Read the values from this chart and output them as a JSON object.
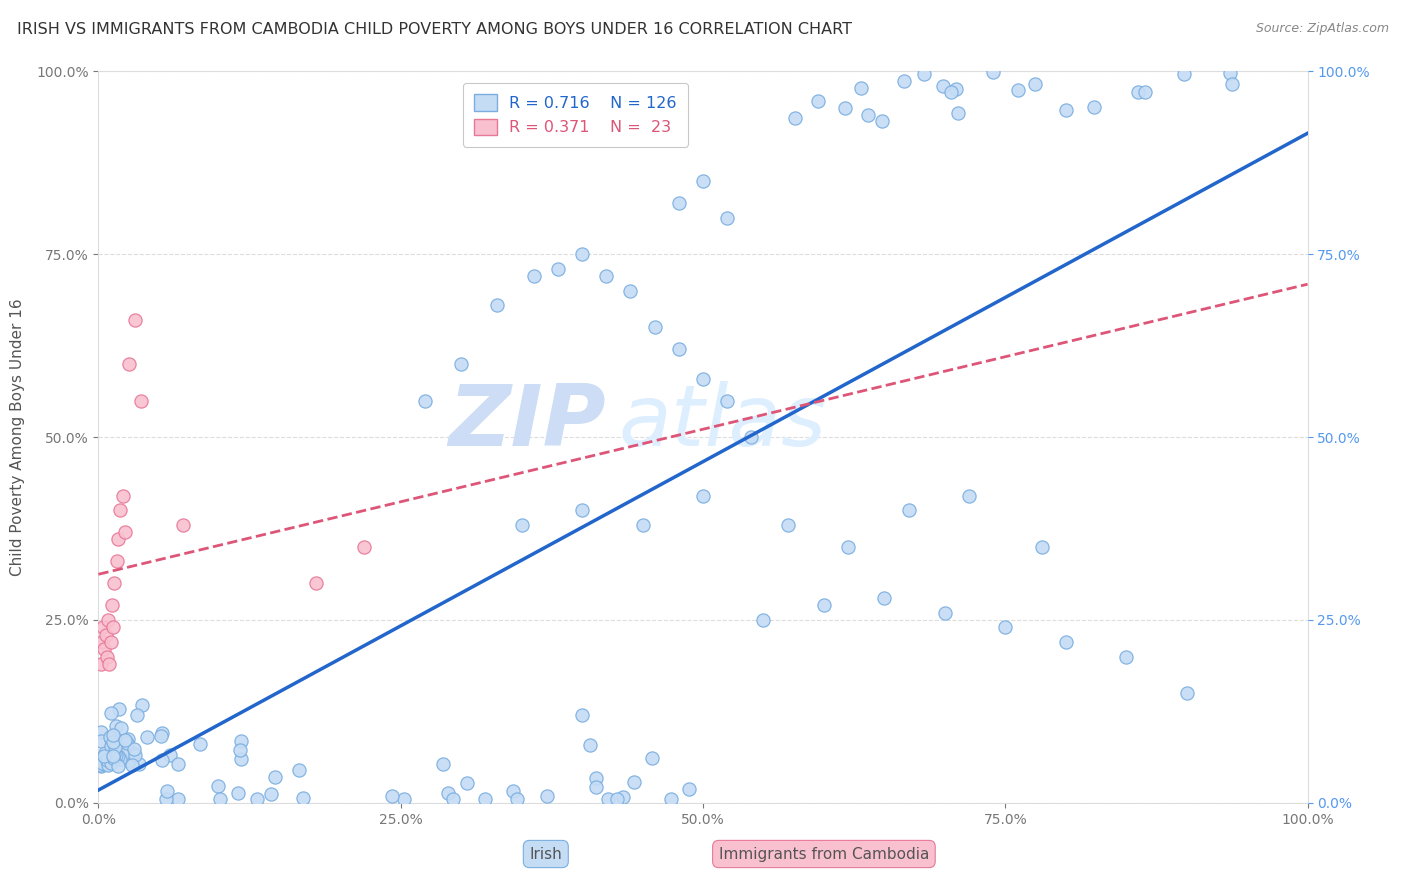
{
  "title": "IRISH VS IMMIGRANTS FROM CAMBODIA CHILD POVERTY AMONG BOYS UNDER 16 CORRELATION CHART",
  "source": "Source: ZipAtlas.com",
  "ylabel": "Child Poverty Among Boys Under 16",
  "watermark_line1": "ZIP",
  "watermark_line2": "atlas",
  "legend_irish_r": "0.716",
  "legend_irish_n": "126",
  "legend_camb_r": "0.371",
  "legend_camb_n": " 23",
  "irish_color": "#c5dcf5",
  "irish_edge": "#7aaee0",
  "camb_color": "#f9c0cf",
  "camb_edge": "#e87898",
  "irish_line_color": "#2266cc",
  "camb_line_color": "#dd5577",
  "grid_color": "#dddddd",
  "background_color": "#ffffff",
  "title_color": "#333333",
  "watermark_color": "#ddeeff",
  "right_tick_color": "#5599ee"
}
